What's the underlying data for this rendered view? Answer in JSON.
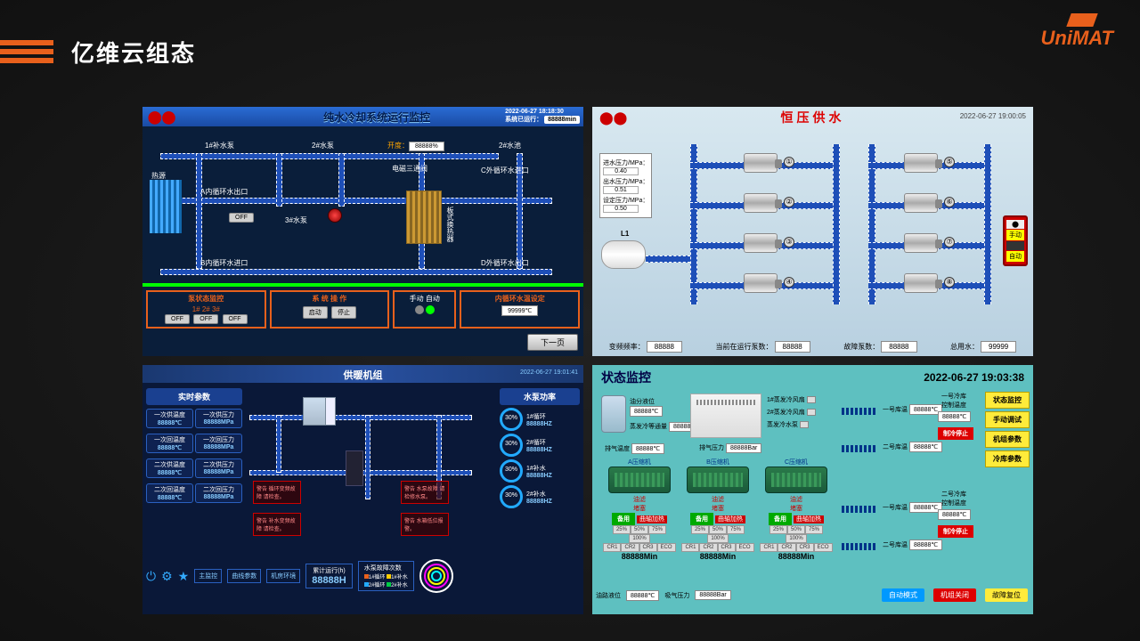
{
  "page": {
    "title": "亿维云组态",
    "brand": "UniMAT"
  },
  "panel1": {
    "title": "纯水冷却系统运行监控",
    "timestamp": "2022-06-27 18:18:30",
    "runtime_label": "系统已运行：",
    "runtime_value": "88888min",
    "labels": {
      "heat_source": "热源",
      "pump1": "1#补水泵",
      "pump2": "2#水泵",
      "pump3": "3#水泵",
      "pool2": "2#水池",
      "valve_open": "开度：",
      "valve_open_val": "88888%",
      "valve3": "电磁三通阀",
      "outA": "A内循环水出口",
      "inB": "B内循环水进口",
      "inC": "C外循环水进口",
      "outD": "D外循环水出口",
      "side": "板式换热器",
      "off": "OFF"
    },
    "footer": {
      "status_title": "泵状态监控",
      "pumps": [
        "1#",
        "2#",
        "3#"
      ],
      "off": "OFF",
      "ops_title": "系 统 操 作",
      "start": "启动",
      "stop": "停止",
      "manual": "手动",
      "auto": "自动",
      "temp_title": "内循环水温设定",
      "temp_val": "99999℃",
      "next": "下一页"
    }
  },
  "panel2": {
    "title": "恒压供水",
    "timestamp": "2022-06-27 19:00:05",
    "inputs": {
      "in_pressure": "进水压力/MPa：",
      "in_val": "0.40",
      "out_pressure": "出水压力/MPa：",
      "out_val": "0.51",
      "set_pressure": "设定压力/MPa：",
      "set_val": "0.50"
    },
    "tank_label": "L1",
    "pump_ids": [
      "①",
      "②",
      "③",
      "④",
      "⑤",
      "⑥",
      "⑦",
      "⑧"
    ],
    "switch": {
      "manual": "手动",
      "auto": "自动"
    },
    "footer": {
      "freq": "变频频率：",
      "freq_v": "88888",
      "running": "当前在运行泵数：",
      "running_v": "88888",
      "fault": "故障泵数：",
      "fault_v": "88888",
      "water": "总用水：",
      "water_v": "99999"
    }
  },
  "panel3": {
    "title": "供暖机组",
    "timestamp": "2022-06-27 19:01:41",
    "realtime_title": "实时参数",
    "params": [
      {
        "n": "一次供温度",
        "v": "88888℃"
      },
      {
        "n": "一次供压力",
        "v": "88888MPa"
      },
      {
        "n": "一次回温度",
        "v": "88888℃"
      },
      {
        "n": "一次回压力",
        "v": "88888MPa"
      },
      {
        "n": "二次供温度",
        "v": "88888℃"
      },
      {
        "n": "二次供压力",
        "v": "88888MPa"
      },
      {
        "n": "二次回温度",
        "v": "88888℃"
      },
      {
        "n": "二次回压力",
        "v": "88888MPa"
      }
    ],
    "power_title": "水泵功率",
    "power": [
      {
        "n": "1#循环",
        "v": "88888HZ",
        "p": "30%"
      },
      {
        "n": "2#循环",
        "v": "88888HZ",
        "p": "30%"
      },
      {
        "n": "1#补水",
        "v": "88888HZ",
        "p": "30%"
      },
      {
        "n": "2#补水",
        "v": "88888HZ",
        "p": "30%"
      }
    ],
    "warnings": [
      "警告\n循环变频故障\n请检查。",
      "警告\n补水变频故障\n请检查。",
      "警告\n水泵故障 请\n检修水泵。",
      "警告\n水箱低位报\n警。"
    ],
    "tabs": [
      "主监控",
      "曲线参数",
      "机房环境"
    ],
    "runtime": {
      "t": "累计运行(h)",
      "v": "88888H"
    },
    "fault": {
      "t": "水泵故障次数",
      "items": [
        "1#循环",
        "1#补水",
        "2#循环",
        "2#补水"
      ],
      "colors": [
        "#e8601c",
        "#ffcc00",
        "#2af",
        "#0c4"
      ]
    }
  },
  "panel4": {
    "title": "状态监控",
    "timestamp": "2022-06-27 19:03:38",
    "nav": [
      "状态监控",
      "手动调试",
      "机组参数",
      "冷库参数"
    ],
    "top_labels": {
      "oil_sep": "油分液位",
      "oil_v": "88888℃",
      "cool_f": "蒸发冷等通量",
      "cool_v": "88888%",
      "fan1": "1#蒸发冷风扇",
      "fan2": "2#蒸发冷风扇",
      "cold_pump": "蒸发冷水泵"
    },
    "mid_labels": {
      "exhaust": "排气温度",
      "exhaust_v": "88888℃",
      "exhaust_p": "排气压力",
      "exhaust_pv": "88888Bar"
    },
    "right_labels": {
      "ctrl1": "一号冷库\n控制温度",
      "store1": "一号库温",
      "store2": "二号库温",
      "v": "88888℃",
      "ctrl2": "二号冷库\n控制温度",
      "stop1": "制冷停止",
      "stop2": "制冷停止"
    },
    "compressors": {
      "names": [
        "A压缩机",
        "B压缩机",
        "C压缩机"
      ],
      "filter": "油滤\n堵塞",
      "use": "备用",
      "heat": "曲轴加热",
      "pcts": [
        "25%",
        "50%",
        "75%",
        "100%"
      ],
      "cells": [
        "CR1",
        "CR2",
        "CR3",
        "ECO"
      ],
      "min": "88888Min"
    },
    "footer": {
      "oil": "油路液位",
      "oil_v": "88888℃",
      "suction": "吸气压力",
      "suction_v": "88888Bar",
      "auto": "自动模式",
      "shutdown": "机组关闭",
      "reset": "故障复位"
    }
  }
}
